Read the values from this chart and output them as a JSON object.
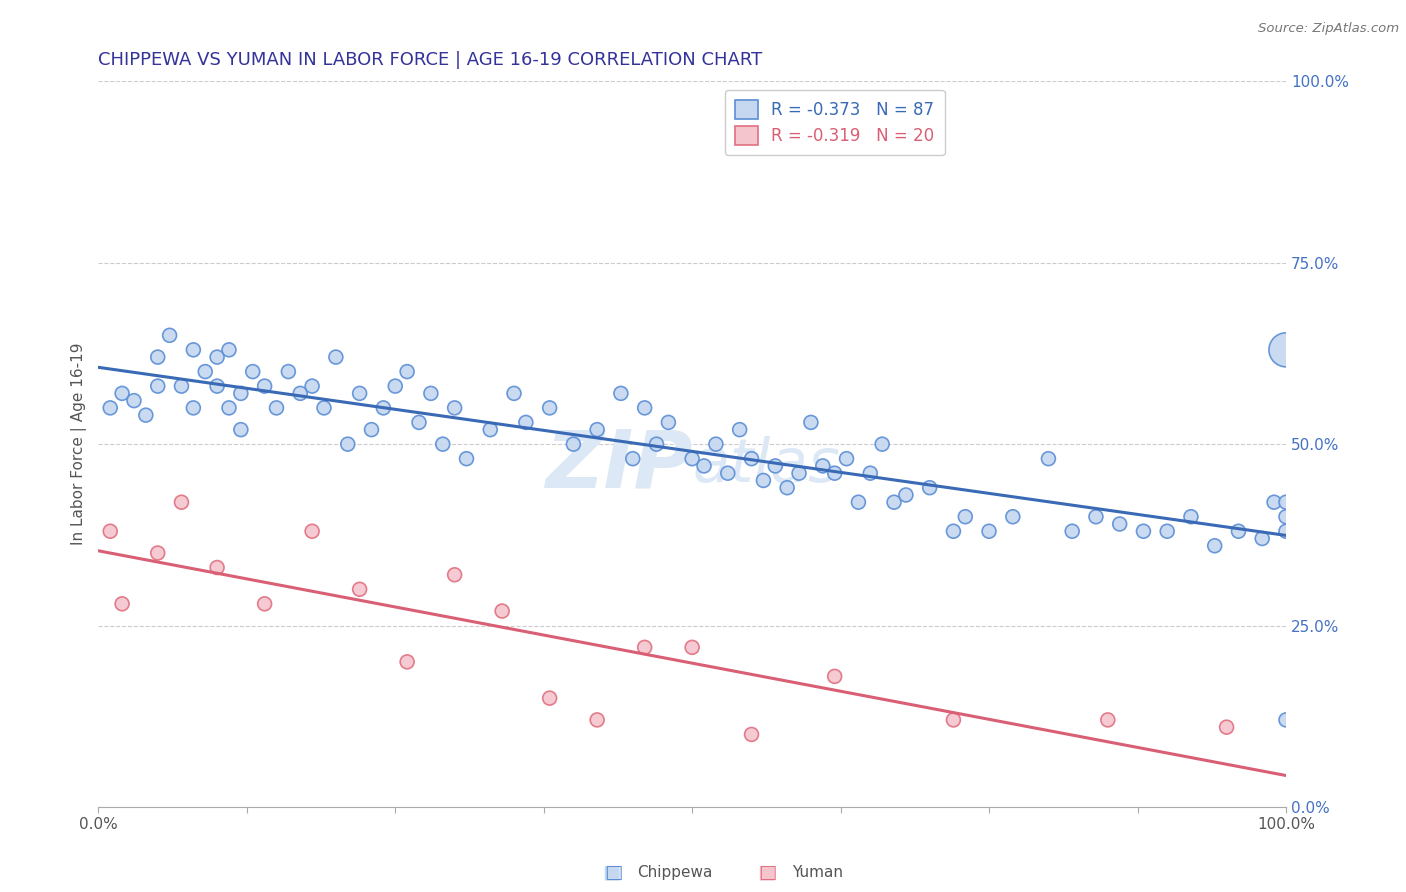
{
  "title": "CHIPPEWA VS YUMAN IN LABOR FORCE | AGE 16-19 CORRELATION CHART",
  "source": "Source: ZipAtlas.com",
  "ylabel": "In Labor Force | Age 16-19",
  "legend_chippewa": "Chippewa",
  "legend_yuman": "Yuman",
  "r_chippewa": -0.373,
  "n_chippewa": 87,
  "r_yuman": -0.319,
  "n_yuman": 20,
  "color_chippewa_fill": "#c5d8f0",
  "color_chippewa_edge": "#5b8ed6",
  "color_chippewa_line": "#3a6ab5",
  "color_yuman_fill": "#f5c5ce",
  "color_yuman_edge": "#e07080",
  "color_yuman_line": "#d95f74",
  "watermark_color": "#d0dff0",
  "title_color": "#333399",
  "ytick_color": "#4472c4",
  "chippewa_x": [
    1,
    2,
    3,
    4,
    5,
    5,
    6,
    7,
    8,
    8,
    9,
    10,
    10,
    11,
    11,
    12,
    12,
    13,
    14,
    15,
    16,
    17,
    18,
    19,
    20,
    21,
    22,
    23,
    24,
    25,
    26,
    27,
    28,
    29,
    30,
    31,
    33,
    35,
    36,
    38,
    40,
    42,
    44,
    45,
    46,
    47,
    48,
    50,
    51,
    52,
    53,
    54,
    55,
    56,
    57,
    58,
    59,
    60,
    61,
    62,
    63,
    64,
    65,
    66,
    67,
    68,
    70,
    72,
    73,
    75,
    77,
    80,
    82,
    84,
    86,
    88,
    90,
    92,
    94,
    96,
    98,
    99,
    100,
    100,
    100,
    100,
    100
  ],
  "chippewa_y": [
    55,
    57,
    56,
    54,
    62,
    58,
    65,
    58,
    55,
    63,
    60,
    62,
    58,
    55,
    63,
    57,
    52,
    60,
    58,
    55,
    60,
    57,
    58,
    55,
    62,
    50,
    57,
    52,
    55,
    58,
    60,
    53,
    57,
    50,
    55,
    48,
    52,
    57,
    53,
    55,
    50,
    52,
    57,
    48,
    55,
    50,
    53,
    48,
    47,
    50,
    46,
    52,
    48,
    45,
    47,
    44,
    46,
    53,
    47,
    46,
    48,
    42,
    46,
    50,
    42,
    43,
    44,
    38,
    40,
    38,
    40,
    48,
    38,
    40,
    39,
    38,
    38,
    40,
    36,
    38,
    37,
    42,
    42,
    40,
    38,
    12,
    63
  ],
  "chippewa_sizes": [
    100,
    100,
    100,
    100,
    100,
    100,
    100,
    100,
    100,
    100,
    100,
    100,
    100,
    100,
    100,
    100,
    100,
    100,
    100,
    100,
    100,
    100,
    100,
    100,
    100,
    100,
    100,
    100,
    100,
    100,
    100,
    100,
    100,
    100,
    100,
    100,
    100,
    100,
    100,
    100,
    100,
    100,
    100,
    100,
    100,
    100,
    100,
    100,
    100,
    100,
    100,
    100,
    100,
    100,
    100,
    100,
    100,
    100,
    100,
    100,
    100,
    100,
    100,
    100,
    100,
    100,
    100,
    100,
    100,
    100,
    100,
    100,
    100,
    100,
    100,
    100,
    100,
    100,
    100,
    100,
    100,
    100,
    100,
    100,
    100,
    100,
    600
  ],
  "yuman_x": [
    1,
    2,
    5,
    7,
    10,
    14,
    18,
    22,
    26,
    30,
    34,
    38,
    42,
    46,
    50,
    55,
    62,
    72,
    85,
    95
  ],
  "yuman_y": [
    38,
    28,
    35,
    42,
    33,
    28,
    38,
    30,
    20,
    32,
    27,
    15,
    12,
    22,
    22,
    10,
    18,
    12,
    12,
    11
  ],
  "yuman_sizes": [
    100,
    100,
    100,
    100,
    100,
    100,
    100,
    100,
    100,
    100,
    100,
    100,
    100,
    100,
    100,
    100,
    100,
    100,
    100,
    100
  ]
}
